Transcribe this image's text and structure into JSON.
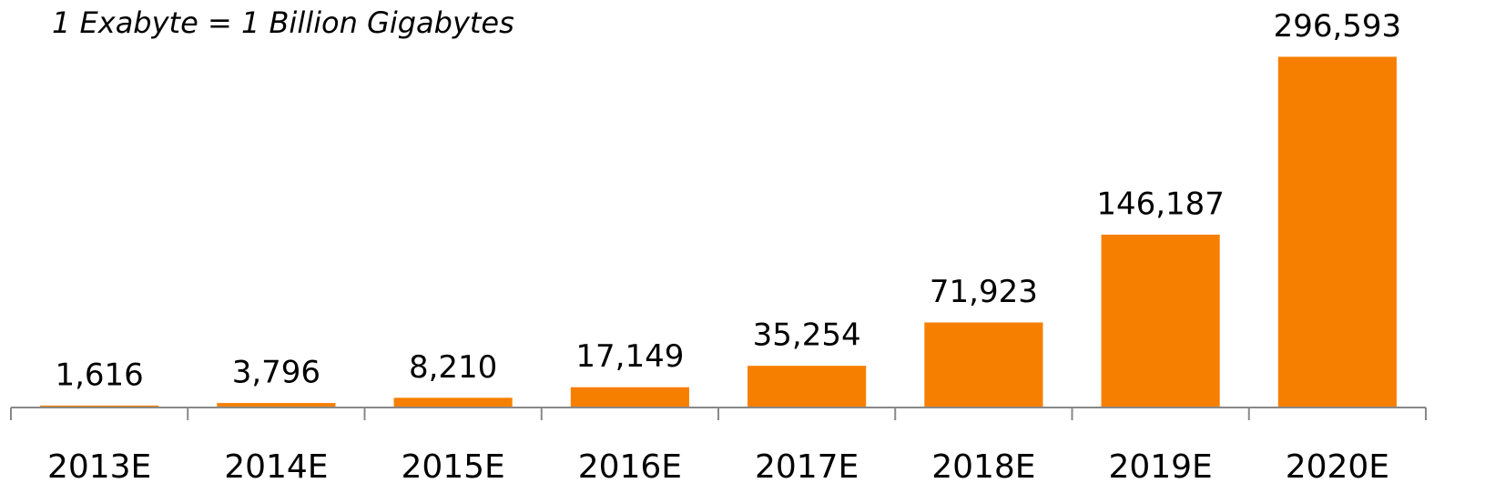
{
  "chart_data": {
    "type": "bar",
    "annotation": "1 Exabyte = 1 Billion Gigabytes",
    "categories": [
      "2013E",
      "2014E",
      "2015E",
      "2016E",
      "2017E",
      "2018E",
      "2019E",
      "2020E"
    ],
    "values": [
      1616,
      3796,
      8210,
      17149,
      35254,
      71923,
      146187,
      296593
    ],
    "value_labels": [
      "1,616",
      "3,796",
      "8,210",
      "17,149",
      "35,254",
      "71,923",
      "146,187",
      "296,593"
    ],
    "color": "#f77f00",
    "ylim": [
      0,
      300000
    ]
  }
}
